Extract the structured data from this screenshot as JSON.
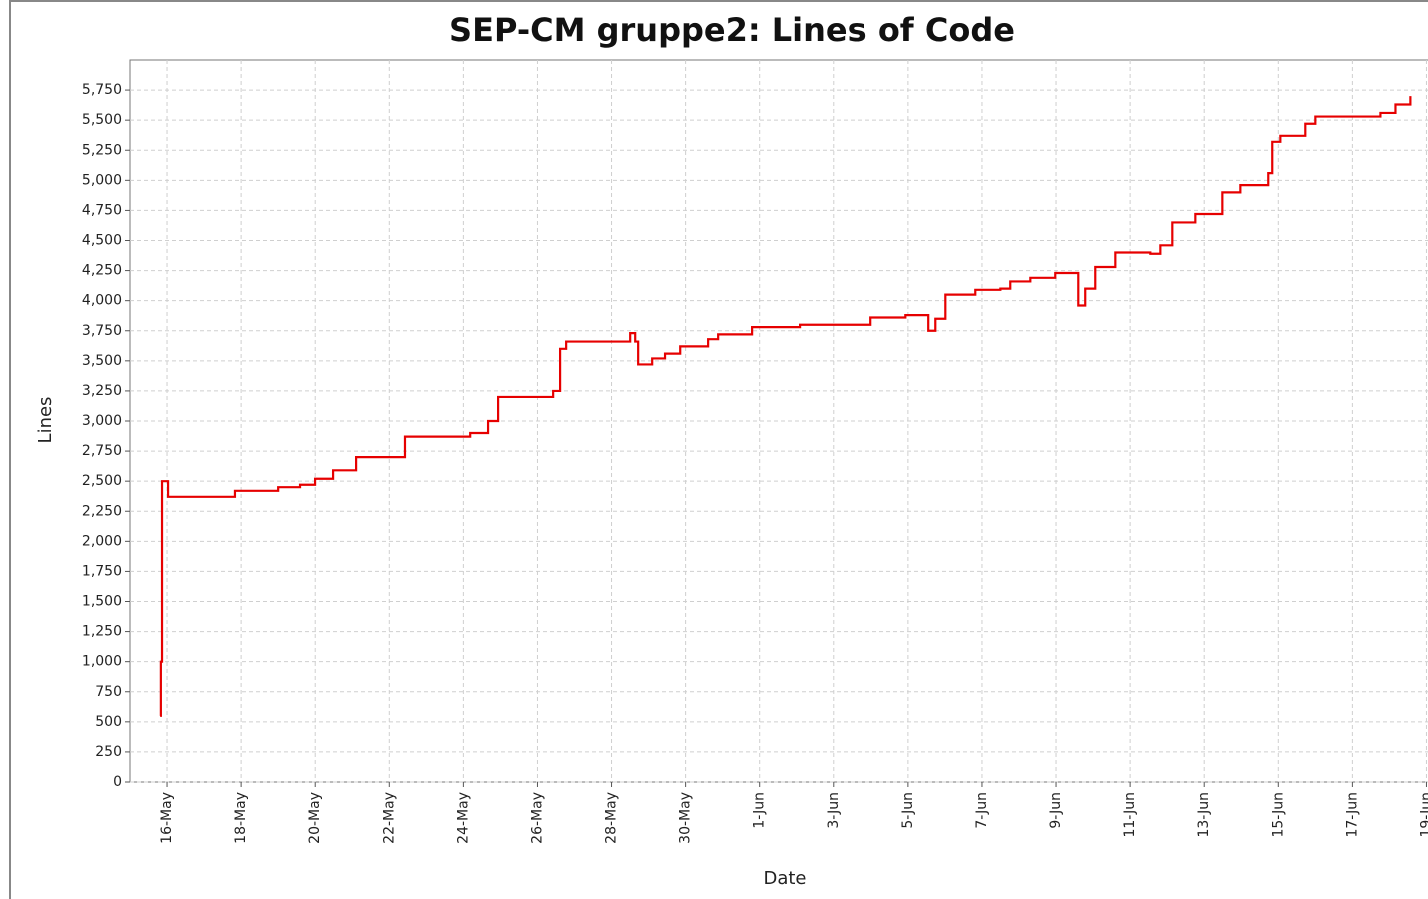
{
  "chart_data": {
    "type": "step",
    "title": "SEP-CM gruppe2: Lines of Code",
    "x_label": "Date",
    "y_label": "Lines",
    "x": [
      "05-15 19:30",
      "05-15 20:00",
      "05-15 20:45",
      "05-16 00:00",
      "05-16 00:40",
      "05-17 20:00",
      "05-19 00:00",
      "05-19 14:10",
      "05-19 23:55",
      "05-20 11:35",
      "05-21 02:30",
      "05-22 10:10",
      "05-23 18:35",
      "05-24 04:25",
      "05-24 16:00",
      "05-24 22:30",
      "05-26 10:10",
      "05-26 14:40",
      "05-26 18:35",
      "05-28 12:05",
      "05-28 15:20",
      "05-28 17:15",
      "05-29 02:20",
      "05-29 10:40",
      "05-29 20:30",
      "05-30 14:35",
      "05-30 21:05",
      "05-31 19:05",
      "06-02 02:10",
      "06-03 23:35",
      "06-04 22:20",
      "06-05 13:10",
      "06-05 17:45",
      "06-06 00:15",
      "06-06 19:40",
      "06-07 11:55",
      "06-07 18:20",
      "06-08 07:20",
      "06-08 23:30",
      "06-09 14:25",
      "06-09 18:55",
      "06-10 01:25",
      "06-10 14:25",
      "06-11 13:05",
      "06-11 19:35",
      "06-12 03:20",
      "06-12 18:15",
      "06-13 11:45",
      "06-13 23:25",
      "06-14 17:30",
      "06-14 20:05",
      "06-15 01:20",
      "06-15 17:30",
      "06-16 00:00",
      "06-17 18:10",
      "06-18 03:55",
      "06-18 13:35"
    ],
    "series": [
      {
        "name": "Lines",
        "color": "#e60000",
        "values": [
          550,
          1000,
          2500,
          2500,
          2370,
          2420,
          2450,
          2470,
          2520,
          2590,
          2700,
          2870,
          2870,
          2900,
          3000,
          3200,
          3250,
          3600,
          3660,
          3730,
          3660,
          3470,
          3520,
          3560,
          3620,
          3680,
          3720,
          3780,
          3800,
          3860,
          3880,
          3750,
          3850,
          4050,
          4090,
          4100,
          4160,
          4190,
          4230,
          3960,
          4100,
          4280,
          4400,
          4390,
          4460,
          4650,
          4720,
          4900,
          4960,
          5060,
          5320,
          5370,
          5470,
          5530,
          5560,
          5630,
          5700
        ]
      }
    ],
    "xlim": [
      "05-15 00:00",
      "06-19 01:00"
    ],
    "xticks": [
      {
        "value": "05-16 00:00",
        "label": "16-May"
      },
      {
        "value": "05-18 00:00",
        "label": "18-May"
      },
      {
        "value": "05-20 00:00",
        "label": "20-May"
      },
      {
        "value": "05-22 00:00",
        "label": "22-May"
      },
      {
        "value": "05-24 00:00",
        "label": "24-May"
      },
      {
        "value": "05-26 00:00",
        "label": "26-May"
      },
      {
        "value": "05-28 00:00",
        "label": "28-May"
      },
      {
        "value": "05-30 00:00",
        "label": "30-May"
      },
      {
        "value": "06-01 00:00",
        "label": "1-Jun"
      },
      {
        "value": "06-03 00:00",
        "label": "3-Jun"
      },
      {
        "value": "06-05 00:00",
        "label": "5-Jun"
      },
      {
        "value": "06-07 00:00",
        "label": "7-Jun"
      },
      {
        "value": "06-09 00:00",
        "label": "9-Jun"
      },
      {
        "value": "06-11 00:00",
        "label": "11-Jun"
      },
      {
        "value": "06-13 00:00",
        "label": "13-Jun"
      },
      {
        "value": "06-15 00:00",
        "label": "15-Jun"
      },
      {
        "value": "06-17 00:00",
        "label": "17-Jun"
      },
      {
        "value": "06-19 00:00",
        "label": "19-Jun"
      }
    ],
    "ylim": [
      0,
      6000
    ],
    "yticks": [
      0,
      250,
      500,
      750,
      {
        "value": 1000,
        "label": "1,000"
      },
      {
        "value": 1250,
        "label": "1,250"
      },
      {
        "value": 1500,
        "label": "1,500"
      },
      {
        "value": 1750,
        "label": "1,750"
      },
      {
        "value": 2000,
        "label": "2,000"
      },
      {
        "value": 2250,
        "label": "2,250"
      },
      {
        "value": 2500,
        "label": "2,500"
      },
      {
        "value": 2750,
        "label": "2,750"
      },
      {
        "value": 3000,
        "label": "3,000"
      },
      {
        "value": 3250,
        "label": "3,250"
      },
      {
        "value": 3500,
        "label": "3,500"
      },
      {
        "value": 3750,
        "label": "3,750"
      },
      {
        "value": 4000,
        "label": "4,000"
      },
      {
        "value": 4250,
        "label": "4,250"
      },
      {
        "value": 4500,
        "label": "4,500"
      },
      {
        "value": 4750,
        "label": "4,750"
      },
      {
        "value": 5000,
        "label": "5,000"
      },
      {
        "value": 5250,
        "label": "5,250"
      },
      {
        "value": 5500,
        "label": "5,500"
      },
      {
        "value": 5750,
        "label": "5,750"
      }
    ],
    "grid": true
  }
}
